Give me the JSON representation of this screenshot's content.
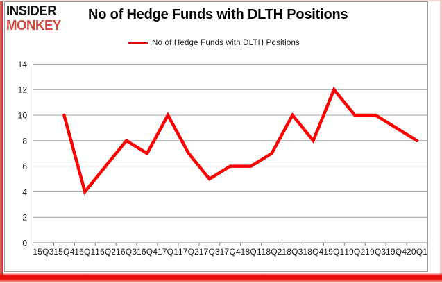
{
  "logo": {
    "line1": "INSIDER",
    "line2": "MONKEY",
    "line1_color": "#141414",
    "line2_color": "#d3473d"
  },
  "header": {
    "title": "No of Hedge Funds with DLTH Positions"
  },
  "legend": {
    "label": "No of Hedge Funds with DLTH Positions",
    "marker_color": "#f00000"
  },
  "chart_data": {
    "type": "line",
    "title": "No of Hedge Funds with DLTH Positions",
    "categories": [
      "15Q3",
      "15Q4",
      "16Q1",
      "16Q2",
      "16Q3",
      "16Q4",
      "17Q1",
      "17Q2",
      "17Q3",
      "17Q4",
      "18Q1",
      "18Q2",
      "18Q3",
      "18Q4",
      "19Q1",
      "19Q2",
      "19Q3",
      "19Q4",
      "20Q1"
    ],
    "series": [
      {
        "name": "No of Hedge Funds with DLTH Positions",
        "color": "#ff0000",
        "values": [
          null,
          10,
          4,
          6,
          8,
          7,
          10,
          7,
          5,
          6,
          6,
          7,
          10,
          8,
          12,
          10,
          10,
          9,
          8
        ]
      }
    ],
    "xlabel": "",
    "ylabel": "",
    "ylim": [
      0,
      14
    ],
    "y_ticks": [
      0,
      2,
      4,
      6,
      8,
      10,
      12,
      14
    ],
    "grid": true,
    "legend_position": "top-center",
    "gridline_color": "#a6a6a6",
    "axis_color": "#808080"
  }
}
